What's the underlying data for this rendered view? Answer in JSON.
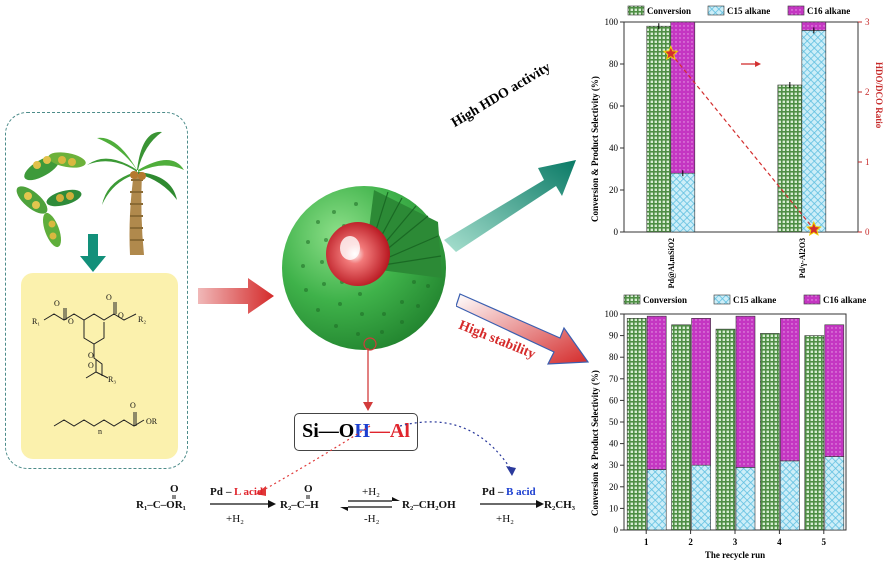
{
  "top_chart": {
    "legend": [
      "Conversion",
      "C15 alkane",
      "C16 alkane"
    ],
    "ylabel": "Conversion & Product Selectivity (%)",
    "y2label": "HDO/DCO Ratio",
    "yticks": [
      "0",
      "20",
      "40",
      "60",
      "80",
      "100"
    ],
    "y2ticks": [
      "0",
      "1",
      "2",
      "3"
    ],
    "categories": [
      "Pd@Al,mSiO2",
      "Pd/γ-Al2O3"
    ]
  },
  "bottom_chart": {
    "legend": [
      "Conversion",
      "C15 alkane",
      "C16 alkane"
    ],
    "ylabel": "Conversion & Product Selectivity (%)",
    "xlabel": "The recycle run",
    "yticks": [
      "0",
      "10",
      "20",
      "30",
      "40",
      "50",
      "60",
      "70",
      "80",
      "90",
      "100"
    ],
    "xticks": [
      "1",
      "2",
      "3",
      "4",
      "5"
    ]
  },
  "chart_data": [
    {
      "type": "bar",
      "categories": [
        "Pd@Al,mSiO2",
        "Pd/γ-Al2O3"
      ],
      "series": [
        {
          "name": "Conversion",
          "values": [
            98,
            70
          ]
        },
        {
          "name": "C15 alkane",
          "values": [
            28,
            96
          ]
        },
        {
          "name": "C16 alkane",
          "values": [
            72,
            4
          ]
        }
      ],
      "secondary_series": {
        "name": "HDO/DCO Ratio",
        "values": [
          2.55,
          0.04
        ]
      },
      "ylabel": "Conversion & Product Selectivity (%)",
      "y2label": "HDO/DCO Ratio",
      "ylim": [
        0,
        100
      ],
      "y2lim": [
        0,
        3
      ],
      "legend_position": "top"
    },
    {
      "type": "bar",
      "categories": [
        "1",
        "2",
        "3",
        "4",
        "5"
      ],
      "series": [
        {
          "name": "Conversion",
          "values": [
            98,
            95,
            93,
            91,
            90
          ]
        },
        {
          "name": "C15 alkane",
          "values": [
            28,
            30,
            29,
            32,
            34
          ]
        },
        {
          "name": "C16 alkane",
          "values": [
            71,
            68,
            70,
            66,
            61
          ]
        }
      ],
      "xlabel": "The recycle run",
      "ylabel": "Conversion & Product Selectivity (%)",
      "ylim": [
        0,
        100
      ],
      "legend_position": "top"
    }
  ],
  "labels": {
    "high_hdo": "High HDO activity",
    "high_stability": "High stability",
    "sioh_si": "Si",
    "sioh_o": "O",
    "sioh_h": "H",
    "sioh_al": "Al"
  },
  "reaction": {
    "r1": "R₁–C–OR₁",
    "cat1": "Pd",
    "cat1_acid": "L acid",
    "cond1": "+H₂",
    "r2": "R₂–C–H",
    "cond2_top": "+H₂",
    "cond2_bot": "-H₂",
    "r3": "R₂–CH₂OH",
    "cat3": "Pd",
    "cat3_acid": "B acid",
    "cond3": "+H₂",
    "r4": "R₂CH₃"
  },
  "colors": {
    "conversion": "#4f8f45",
    "c15": "#8fd6ec",
    "c16": "#c436c2",
    "sphere": "#3fb24a",
    "core": "#d0101a",
    "arrow_green": "#0f8f74",
    "arrow_red": "#d43a3a"
  }
}
